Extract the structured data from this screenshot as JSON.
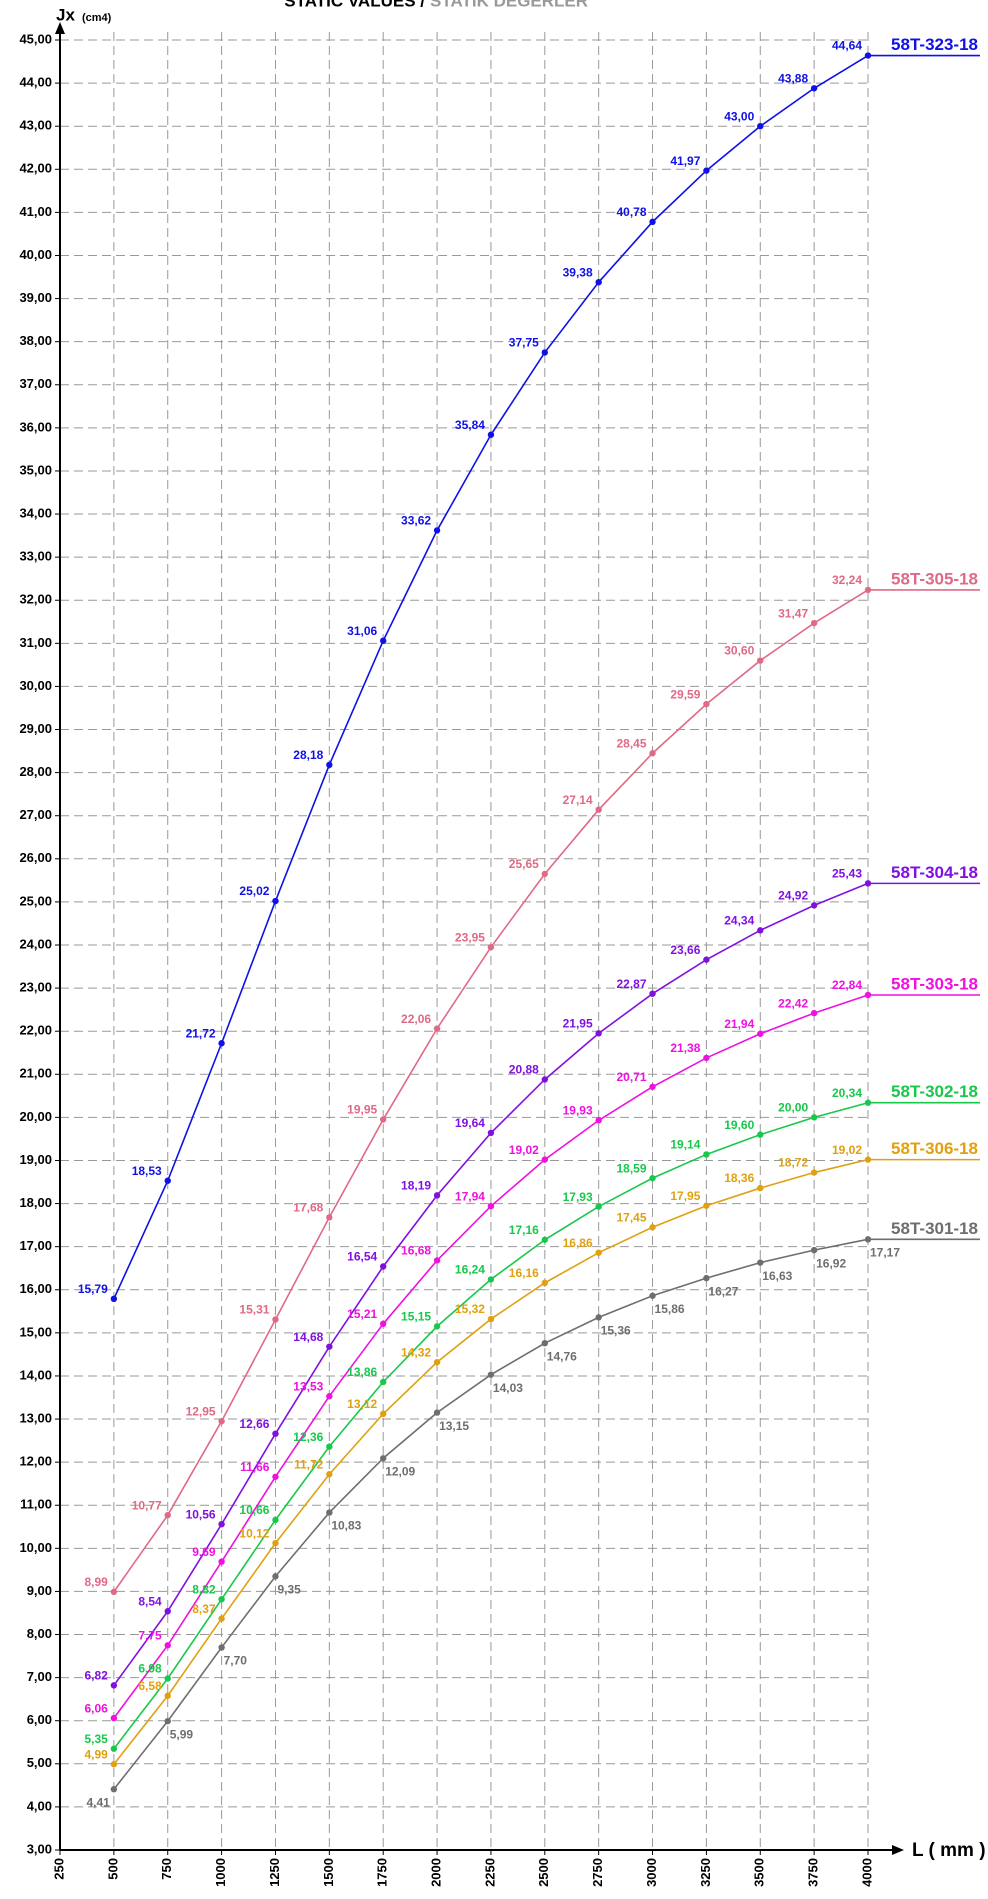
{
  "chart_data": {
    "type": "line",
    "title": "STATIC VALUES /",
    "subtitle": "STATIK DEĞERLER",
    "y_label": "Jx",
    "y_label_unit": "(cm4)",
    "x_label": "L ( mm )",
    "grid": true,
    "xlim": [
      250,
      4000
    ],
    "xticks": [
      250,
      500,
      750,
      1000,
      1250,
      1500,
      1750,
      2000,
      2250,
      2500,
      2750,
      3000,
      3250,
      3500,
      3750,
      4000
    ],
    "ylim": [
      3,
      45
    ],
    "yticks": [
      {
        "value": 3,
        "label": "3,00"
      },
      {
        "value": 4,
        "label": "4,00"
      },
      {
        "value": 5,
        "label": "5,00"
      },
      {
        "value": 6,
        "label": "6,00"
      },
      {
        "value": 7,
        "label": "7,00"
      },
      {
        "value": 8,
        "label": "8,00"
      },
      {
        "value": 9,
        "label": "9,00"
      },
      {
        "value": 10,
        "label": "10,00"
      },
      {
        "value": 11,
        "label": "11,00"
      },
      {
        "value": 12,
        "label": "12,00"
      },
      {
        "value": 13,
        "label": "13,00"
      },
      {
        "value": 14,
        "label": "14,00"
      },
      {
        "value": 15,
        "label": "15,00"
      },
      {
        "value": 16,
        "label": "16,00"
      },
      {
        "value": 17,
        "label": "17,00"
      },
      {
        "value": 18,
        "label": "18,00"
      },
      {
        "value": 19,
        "label": "19,00"
      },
      {
        "value": 20,
        "label": "20,00"
      },
      {
        "value": 21,
        "label": "21,00"
      },
      {
        "value": 22,
        "label": "22,00"
      },
      {
        "value": 23,
        "label": "23,00"
      },
      {
        "value": 24,
        "label": "24,00"
      },
      {
        "value": 25,
        "label": "25,00"
      },
      {
        "value": 26,
        "label": "26,00"
      },
      {
        "value": 27,
        "label": "27,00"
      },
      {
        "value": 28,
        "label": "28,00"
      },
      {
        "value": 29,
        "label": "29,00"
      },
      {
        "value": 30,
        "label": "30,00"
      },
      {
        "value": 31,
        "label": "31,00"
      },
      {
        "value": 32,
        "label": "32,00"
      },
      {
        "value": 33,
        "label": "33,00"
      },
      {
        "value": 34,
        "label": "34,00"
      },
      {
        "value": 35,
        "label": "35,00"
      },
      {
        "value": 36,
        "label": "36,00"
      },
      {
        "value": 37,
        "label": "37,00"
      },
      {
        "value": 38,
        "label": "38,00"
      },
      {
        "value": 39,
        "label": "39,00"
      },
      {
        "value": 40,
        "label": "40,00"
      },
      {
        "value": 41,
        "label": "41,00"
      },
      {
        "value": 42,
        "label": "42,00"
      },
      {
        "value": 43,
        "label": "43,00"
      },
      {
        "value": 44,
        "label": "44,00"
      },
      {
        "value": 45,
        "label": "45,00"
      }
    ],
    "x": [
      500,
      750,
      1000,
      1250,
      1500,
      1750,
      2000,
      2250,
      2500,
      2750,
      3000,
      3250,
      3500,
      3750,
      4000
    ],
    "series": [
      {
        "name": "58T-323-18",
        "color": "#1010e8",
        "values": [
          15.79,
          18.53,
          21.72,
          25.02,
          28.18,
          31.06,
          33.62,
          35.84,
          37.75,
          39.38,
          40.78,
          41.97,
          43.0,
          43.88,
          44.64
        ],
        "value_labels": [
          "15,79",
          "18,53",
          "21,72",
          "25,02",
          "28,18",
          "31,06",
          "33,62",
          "35,84",
          "37,75",
          "39,38",
          "40,78",
          "41,97",
          "43,00",
          "43,88",
          "44,64"
        ]
      },
      {
        "name": "58T-305-18",
        "color": "#e06a86",
        "values": [
          8.99,
          10.77,
          12.95,
          15.31,
          17.68,
          19.95,
          22.06,
          23.95,
          25.65,
          27.14,
          28.45,
          29.59,
          30.6,
          31.47,
          32.24
        ],
        "value_labels": [
          "8,99",
          "10,77",
          "12,95",
          "15,31",
          "17,68",
          "19,95",
          "22,06",
          "23,95",
          "25,65",
          "27,14",
          "28,45",
          "29,59",
          "30,60",
          "31,47",
          "32,24"
        ]
      },
      {
        "name": "58T-304-18",
        "color": "#8010e0",
        "values": [
          6.82,
          8.54,
          10.56,
          12.66,
          14.68,
          16.54,
          18.19,
          19.64,
          20.88,
          21.95,
          22.87,
          23.66,
          24.34,
          24.92,
          25.43
        ],
        "value_labels": [
          "6,82",
          "8,54",
          "10,56",
          "12,66",
          "14,68",
          "16,54",
          "18,19",
          "19,64",
          "20,88",
          "21,95",
          "22,87",
          "23,66",
          "24,34",
          "24,92",
          "25,43"
        ]
      },
      {
        "name": "58T-303-18",
        "color": "#f010e0",
        "values": [
          6.06,
          7.75,
          9.69,
          11.66,
          13.53,
          15.21,
          16.68,
          17.94,
          19.02,
          19.93,
          20.71,
          21.38,
          21.94,
          22.42,
          22.84
        ],
        "value_labels": [
          "6,06",
          "7,75",
          "9,69",
          "11,66",
          "13,53",
          "15,21",
          "16,68",
          "17,94",
          "19,02",
          "19,93",
          "20,71",
          "21,38",
          "21,94",
          "22,42",
          "22,84"
        ]
      },
      {
        "name": "58T-302-18",
        "color": "#18c84a",
        "values": [
          5.35,
          6.98,
          8.82,
          10.66,
          12.36,
          13.86,
          15.15,
          16.24,
          17.16,
          17.93,
          18.59,
          19.14,
          19.6,
          20.0,
          20.34
        ],
        "value_labels": [
          "5,35",
          "6,98",
          "8,82",
          "10,66",
          "12,36",
          "13,86",
          "15,15",
          "16,24",
          "17,16",
          "17,93",
          "18,59",
          "19,14",
          "19,60",
          "20,00",
          "20,34"
        ]
      },
      {
        "name": "58T-306-18",
        "color": "#e0a010",
        "values": [
          4.99,
          6.58,
          8.37,
          10.12,
          11.72,
          13.12,
          14.32,
          15.32,
          16.16,
          16.86,
          17.45,
          17.95,
          18.36,
          18.72,
          19.02
        ],
        "value_labels": [
          "4,99",
          "6,58",
          "8,37",
          "10,12",
          "11,72",
          "13,12",
          "14,32",
          "15,32",
          "16,16",
          "16,86",
          "17,45",
          "17,95",
          "18,36",
          "18,72",
          "19,02"
        ]
      },
      {
        "name": "58T-301-18",
        "color": "#6e6e6e",
        "values": [
          4.41,
          5.99,
          7.7,
          9.35,
          10.83,
          12.09,
          13.15,
          14.03,
          14.76,
          15.36,
          15.86,
          16.27,
          16.63,
          16.92,
          17.17
        ],
        "value_labels": [
          "4,41",
          "5,99",
          "7,70",
          "9,35",
          "10,83",
          "12,09",
          "13,15",
          "14,03",
          "14,76",
          "15,36",
          "15,86",
          "16,27",
          "16,63",
          "16,92",
          "17,17"
        ]
      }
    ]
  }
}
